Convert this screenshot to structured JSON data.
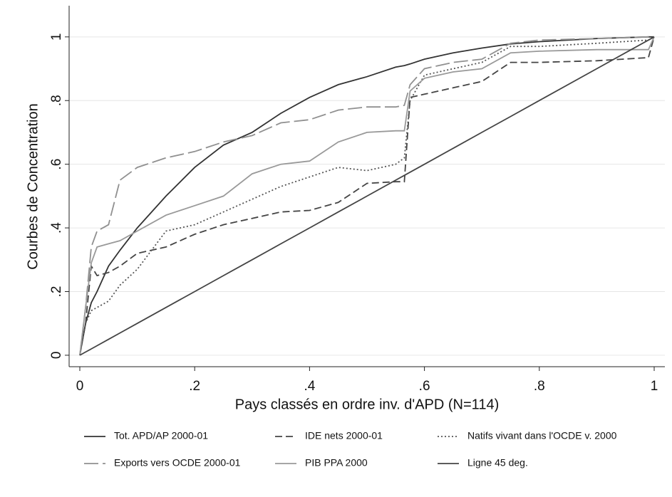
{
  "chart_data": {
    "type": "line",
    "x_label": "Pays classés en ordre inv. d'APD (N=114)",
    "y_label": "Courbes de Concentration",
    "x": [
      0,
      0.01,
      0.02,
      0.03,
      0.05,
      0.07,
      0.1,
      0.15,
      0.2,
      0.25,
      0.3,
      0.35,
      0.4,
      0.45,
      0.5,
      0.55,
      0.565,
      0.575,
      0.6,
      0.65,
      0.7,
      0.75,
      0.8,
      0.9,
      0.99,
      1
    ],
    "series": [
      {
        "name": "Tot. APD/AP 2000-01",
        "color": "#333333",
        "dash": "solid",
        "values": [
          0,
          0.1,
          0.165,
          0.2,
          0.28,
          0.33,
          0.4,
          0.5,
          0.59,
          0.66,
          0.7,
          0.76,
          0.81,
          0.85,
          0.875,
          0.905,
          0.91,
          0.915,
          0.93,
          0.95,
          0.965,
          0.978,
          0.985,
          0.995,
          1,
          1
        ]
      },
      {
        "name": "IDE nets 2000-01",
        "color": "#444444",
        "dash": "dash",
        "values": [
          0,
          0.1,
          0.28,
          0.25,
          0.26,
          0.28,
          0.32,
          0.34,
          0.38,
          0.41,
          0.43,
          0.45,
          0.455,
          0.48,
          0.54,
          0.545,
          0.545,
          0.81,
          0.82,
          0.84,
          0.86,
          0.92,
          0.92,
          0.925,
          0.935,
          1
        ]
      },
      {
        "name": "Natifs vivant dans l'OCDE v. 2000",
        "color": "#555555",
        "dash": "dot",
        "values": [
          0,
          0.1,
          0.14,
          0.15,
          0.17,
          0.22,
          0.27,
          0.39,
          0.41,
          0.45,
          0.49,
          0.53,
          0.56,
          0.59,
          0.58,
          0.6,
          0.62,
          0.8,
          0.88,
          0.9,
          0.92,
          0.97,
          0.97,
          0.98,
          0.99,
          1
        ]
      },
      {
        "name": "Exports vers OCDE 2000-01",
        "color": "#909090",
        "dash": "longdash",
        "values": [
          0,
          0.15,
          0.34,
          0.39,
          0.41,
          0.55,
          0.59,
          0.62,
          0.64,
          0.67,
          0.69,
          0.73,
          0.74,
          0.77,
          0.78,
          0.78,
          0.785,
          0.85,
          0.9,
          0.92,
          0.93,
          0.98,
          0.99,
          0.995,
          1,
          1
        ]
      },
      {
        "name": "PIB PPA 2000",
        "color": "#999999",
        "dash": "solid",
        "values": [
          0,
          0.15,
          0.29,
          0.34,
          0.35,
          0.36,
          0.39,
          0.44,
          0.47,
          0.5,
          0.57,
          0.6,
          0.61,
          0.67,
          0.7,
          0.705,
          0.705,
          0.83,
          0.87,
          0.89,
          0.9,
          0.95,
          0.955,
          0.96,
          0.96,
          1
        ]
      },
      {
        "name": "Ligne 45 deg.",
        "color": "#444444",
        "dash": "solid",
        "values": [
          0,
          0.01,
          0.02,
          0.03,
          0.05,
          0.07,
          0.1,
          0.15,
          0.2,
          0.25,
          0.3,
          0.35,
          0.4,
          0.45,
          0.5,
          0.55,
          0.565,
          0.575,
          0.6,
          0.65,
          0.7,
          0.75,
          0.8,
          0.9,
          0.99,
          1
        ]
      }
    ],
    "xlim": [
      -0.0186,
      1.0186
    ],
    "ylim": [
      -0.036,
      1.098
    ],
    "xticks": [
      0,
      {
        "value": 0.2,
        "label": ".2"
      },
      {
        "value": 0.4,
        "label": ".4"
      },
      {
        "value": 0.6,
        "label": ".6"
      },
      {
        "value": 0.8,
        "label": ".8"
      },
      1
    ],
    "yticks": [
      0,
      {
        "value": 0.2,
        "label": ".2"
      },
      {
        "value": 0.4,
        "label": ".4"
      },
      {
        "value": 0.6,
        "label": ".6"
      },
      {
        "value": 0.8,
        "label": ".8"
      },
      1
    ],
    "grid": true,
    "legend": "bottom"
  }
}
